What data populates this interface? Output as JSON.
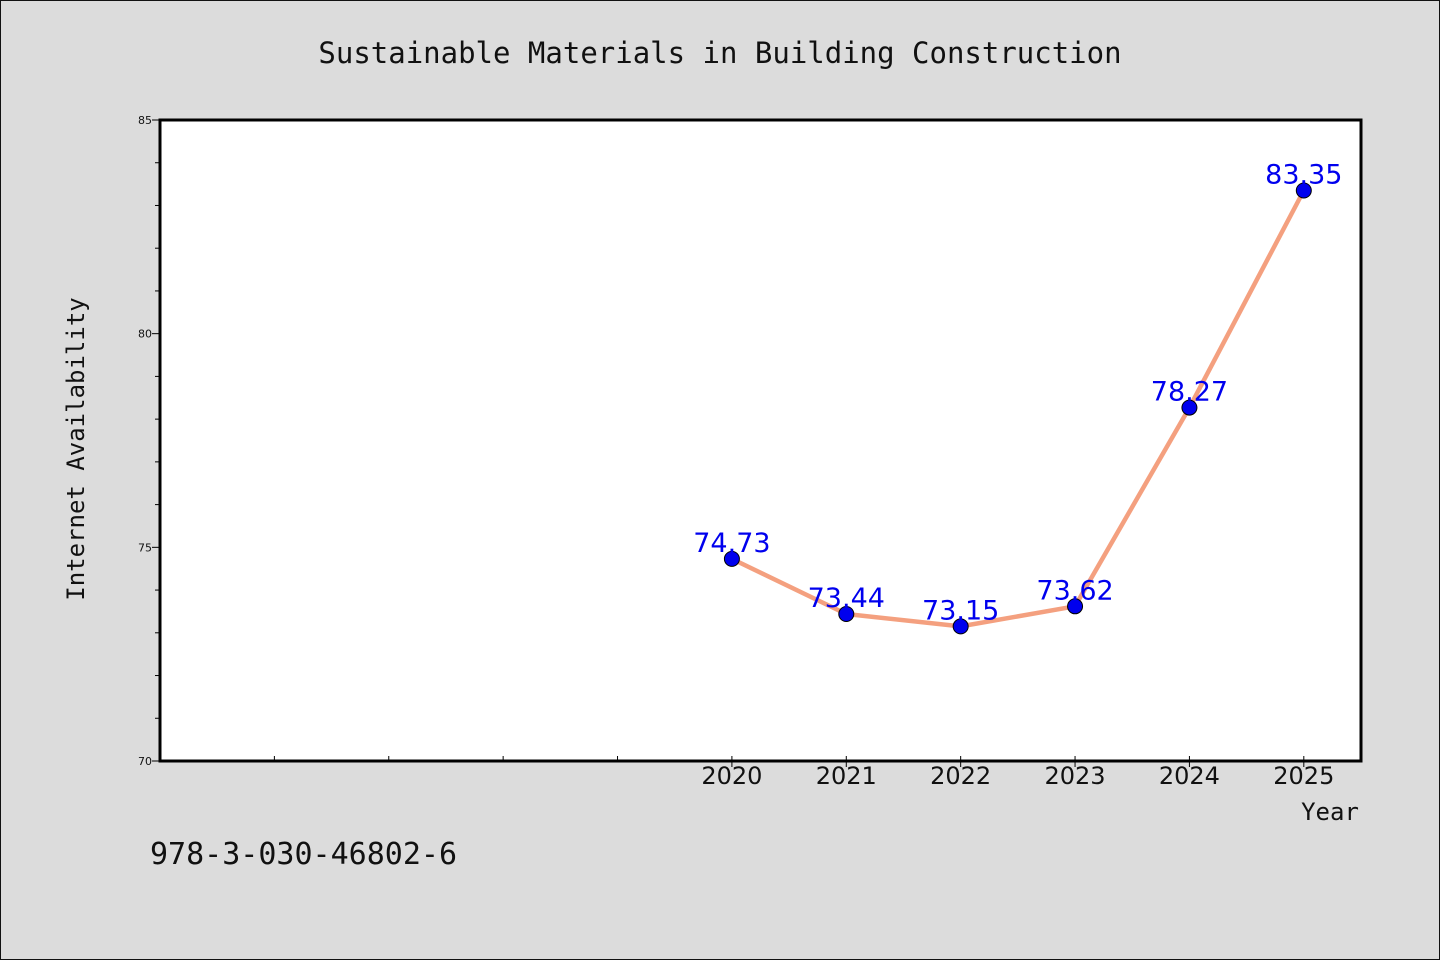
{
  "chart_data": {
    "type": "line",
    "title": "Sustainable Materials in Building Construction",
    "xlabel": "Year",
    "ylabel": "Internet Availability",
    "categories": [
      "2020",
      "2021",
      "2022",
      "2023",
      "2024",
      "2025"
    ],
    "values": [
      74.73,
      73.44,
      73.15,
      73.62,
      78.27,
      83.35
    ],
    "data_labels": [
      "74.73",
      "73.44",
      "73.15",
      "73.62",
      "78.27",
      "83.35"
    ],
    "ylim": [
      70,
      85
    ],
    "yticks": [
      "70",
      "75",
      "80",
      "85"
    ],
    "xlim": [
      2015,
      2025.5
    ],
    "grid": false,
    "line_color": "#f4a07f",
    "marker_color": "#0000ee",
    "label_color": "#0000ee"
  },
  "footer": {
    "isbn": "978-3-030-46802-6"
  }
}
